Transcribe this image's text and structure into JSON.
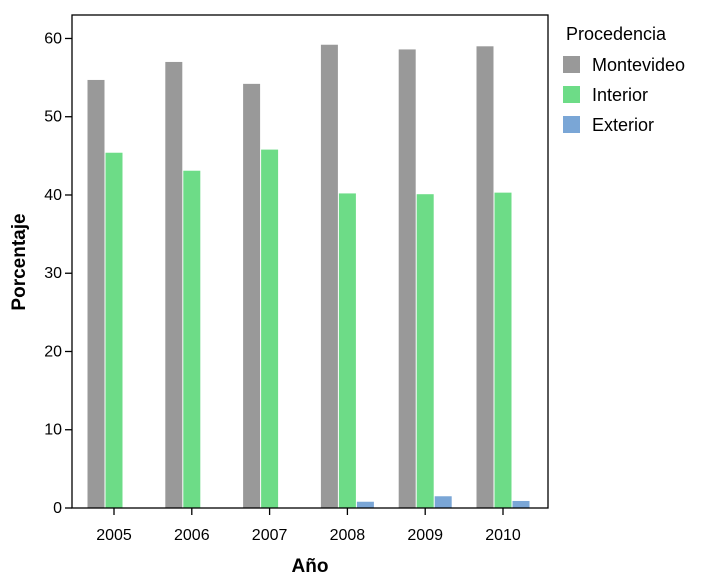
{
  "chart_data": {
    "type": "bar",
    "categories": [
      "2005",
      "2006",
      "2007",
      "2008",
      "2009",
      "2010"
    ],
    "series": [
      {
        "name": "Montevideo",
        "color": "#999999",
        "values": [
          54.7,
          57.0,
          54.2,
          59.2,
          58.6,
          59.0
        ]
      },
      {
        "name": "Interior",
        "color": "#6ddc87",
        "values": [
          45.4,
          43.1,
          45.8,
          40.2,
          40.1,
          40.3
        ]
      },
      {
        "name": "Exterior",
        "color": "#7aa6d6",
        "values": [
          0.0,
          0.0,
          0.0,
          0.8,
          1.5,
          0.9
        ]
      }
    ],
    "xlabel": "Año",
    "ylabel": "Porcentaje",
    "ylim": [
      0,
      63
    ],
    "yticks": [
      0,
      10,
      20,
      30,
      40,
      50,
      60
    ],
    "legend_title": "Procedencia",
    "legend_position": "top-right",
    "grid": false
  }
}
